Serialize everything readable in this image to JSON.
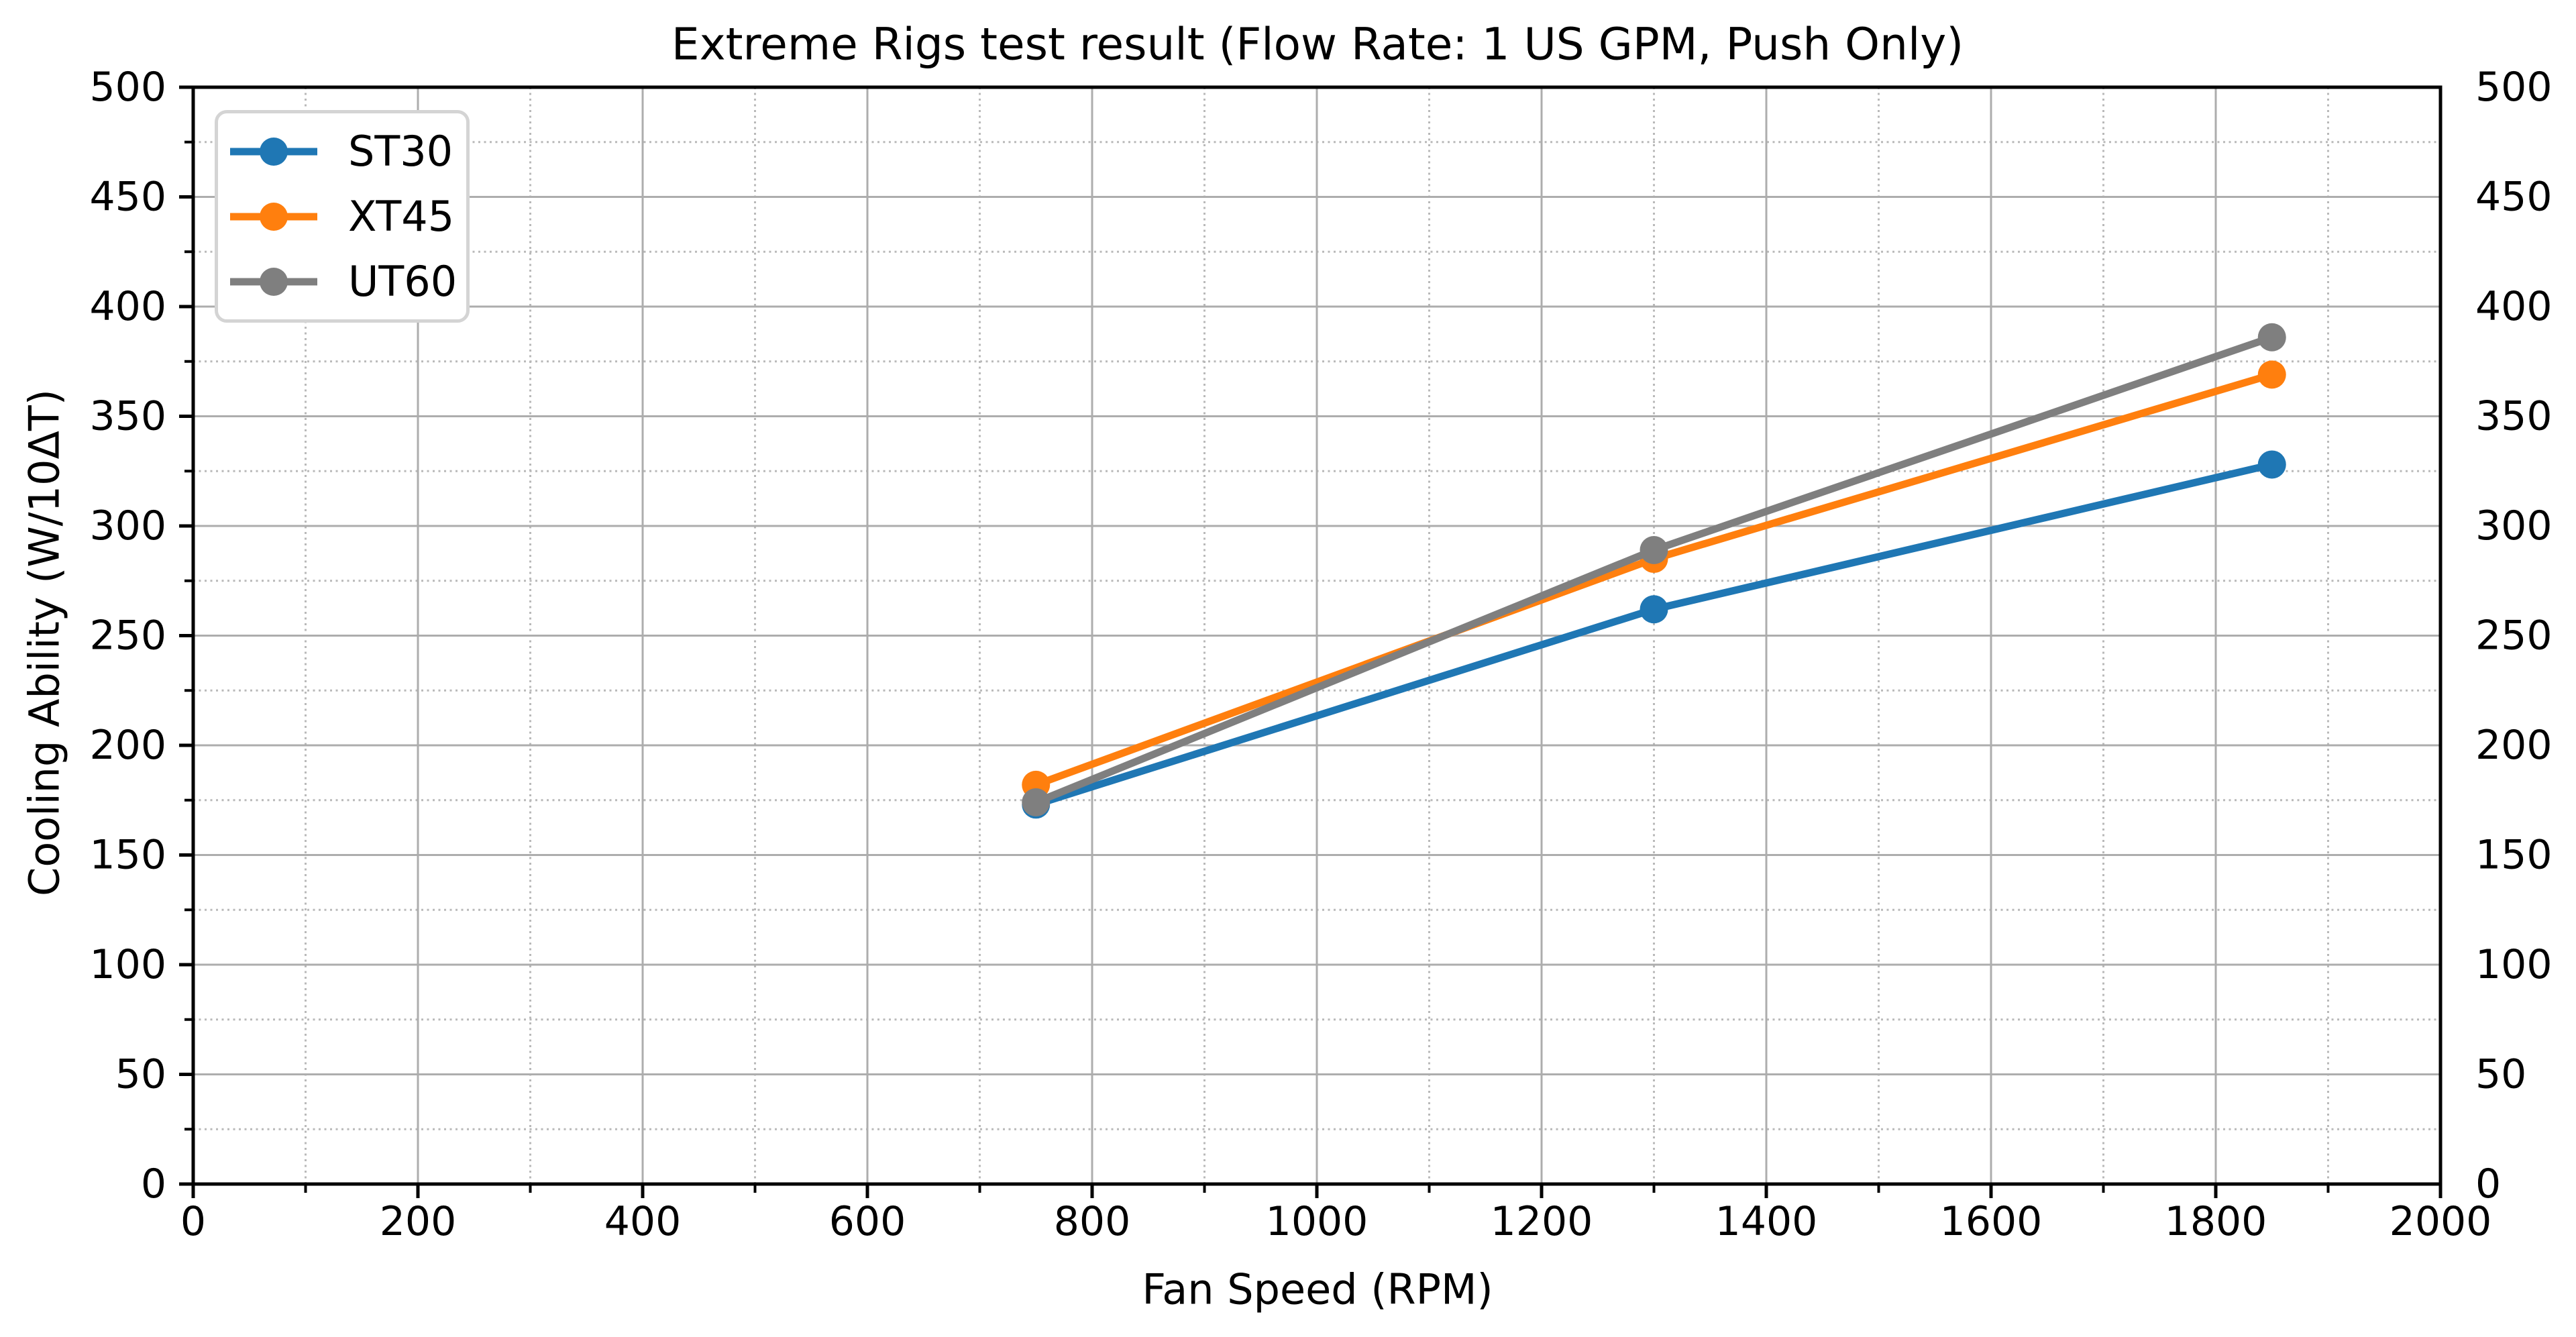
{
  "chart_data": {
    "type": "line",
    "title": "Extreme Rigs test result (Flow Rate: 1 US GPM, Push Only)",
    "xlabel": "Fan Speed (RPM)",
    "ylabel": "Cooling Ability (W/10ΔT)",
    "xlim": [
      0,
      2000
    ],
    "ylim": [
      0,
      500
    ],
    "x_major_ticks": [
      0,
      200,
      400,
      600,
      800,
      1000,
      1200,
      1400,
      1600,
      1800,
      2000
    ],
    "x_minor_ticks": [
      100,
      300,
      500,
      700,
      900,
      1100,
      1300,
      1500,
      1700,
      1900
    ],
    "y_major_ticks": [
      0,
      50,
      100,
      150,
      200,
      250,
      300,
      350,
      400,
      450,
      500
    ],
    "y_minor_ticks": [
      25,
      75,
      125,
      175,
      225,
      275,
      325,
      375,
      425,
      475
    ],
    "y_tick_labels_on_right": true,
    "grid": {
      "major_style": "solid",
      "minor_style": "dotted",
      "major_color": "#adadad",
      "minor_color": "#b9b9b9"
    },
    "legend": {
      "position": "upper-left",
      "entries": [
        "ST30",
        "XT45",
        "UT60"
      ]
    },
    "x": [
      750,
      1300,
      1850
    ],
    "series": [
      {
        "name": "ST30",
        "color": "#1f77b4",
        "values": [
          173,
          262,
          328
        ]
      },
      {
        "name": "XT45",
        "color": "#ff7f0e",
        "values": [
          182,
          285,
          369
        ]
      },
      {
        "name": "UT60",
        "color": "#7f7f7f",
        "values": [
          174,
          289,
          386
        ]
      }
    ]
  }
}
